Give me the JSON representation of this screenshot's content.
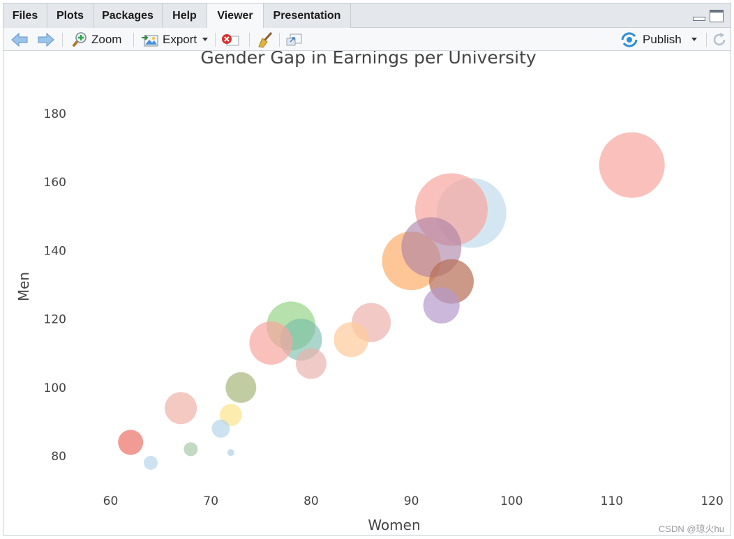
{
  "tabs": [
    {
      "label": "Files",
      "active": false
    },
    {
      "label": "Plots",
      "active": false
    },
    {
      "label": "Packages",
      "active": false
    },
    {
      "label": "Help",
      "active": false
    },
    {
      "label": "Viewer",
      "active": true
    },
    {
      "label": "Presentation",
      "active": false
    }
  ],
  "toolbar": {
    "back_icon": "arrow-left-icon",
    "forward_icon": "arrow-right-icon",
    "zoom_label": "Zoom",
    "export_label": "Export",
    "remove_icon": "remove-icon",
    "clear_icon": "broom-icon",
    "popout_icon": "popout-icon",
    "publish_label": "Publish",
    "refresh_icon": "refresh-icon"
  },
  "watermark": "CSDN @琼火hu",
  "chart_data": {
    "type": "scatter",
    "title": "Gender Gap in Earnings per University",
    "xlabel": "Women",
    "ylabel": "Men",
    "xlim": [
      56,
      121
    ],
    "ylim": [
      69,
      191
    ],
    "xticks": [
      60,
      70,
      80,
      90,
      100,
      110,
      120
    ],
    "yticks": [
      80,
      100,
      120,
      140,
      160,
      180
    ],
    "grid": false,
    "legend": "none",
    "points": [
      {
        "x": 112,
        "y": 165,
        "size": 47,
        "color": "#f8a5a0",
        "opacity": 0.7
      },
      {
        "x": 96,
        "y": 151,
        "size": 50,
        "color": "#a9cde3",
        "opacity": 0.5
      },
      {
        "x": 94,
        "y": 152,
        "size": 52,
        "color": "#f8a5a0",
        "opacity": 0.7
      },
      {
        "x": 90,
        "y": 137,
        "size": 42,
        "color": "#fdae6b",
        "opacity": 0.7
      },
      {
        "x": 92,
        "y": 141,
        "size": 43,
        "color": "#a87fa3",
        "opacity": 0.6
      },
      {
        "x": 94,
        "y": 131,
        "size": 32,
        "color": "#b66e55",
        "opacity": 0.7
      },
      {
        "x": 93,
        "y": 124,
        "size": 26,
        "color": "#b59acc",
        "opacity": 0.7
      },
      {
        "x": 86,
        "y": 119,
        "size": 28,
        "color": "#eeb2ad",
        "opacity": 0.7
      },
      {
        "x": 84,
        "y": 114,
        "size": 25,
        "color": "#fdcb9a",
        "opacity": 0.7
      },
      {
        "x": 78,
        "y": 118,
        "size": 35,
        "color": "#8fcf80",
        "opacity": 0.65
      },
      {
        "x": 79,
        "y": 114,
        "size": 30,
        "color": "#74bba8",
        "opacity": 0.6
      },
      {
        "x": 76,
        "y": 113,
        "size": 31,
        "color": "#f8a5a0",
        "opacity": 0.7
      },
      {
        "x": 80,
        "y": 107,
        "size": 22,
        "color": "#e8b3ae",
        "opacity": 0.7
      },
      {
        "x": 73,
        "y": 100,
        "size": 22,
        "color": "#a8b67a",
        "opacity": 0.7
      },
      {
        "x": 72,
        "y": 92,
        "size": 16,
        "color": "#fbe58d",
        "opacity": 0.7
      },
      {
        "x": 71,
        "y": 88,
        "size": 13,
        "color": "#b8d6ea",
        "opacity": 0.7
      },
      {
        "x": 67,
        "y": 94,
        "size": 23,
        "color": "#eeb2a8",
        "opacity": 0.7
      },
      {
        "x": 68,
        "y": 82,
        "size": 10,
        "color": "#a8cba8",
        "opacity": 0.7
      },
      {
        "x": 72,
        "y": 81,
        "size": 5,
        "color": "#b8d6ea",
        "opacity": 0.8
      },
      {
        "x": 62,
        "y": 84,
        "size": 18,
        "color": "#ee7a72",
        "opacity": 0.75
      },
      {
        "x": 64,
        "y": 78,
        "size": 10,
        "color": "#b8d6ea",
        "opacity": 0.7
      }
    ]
  }
}
